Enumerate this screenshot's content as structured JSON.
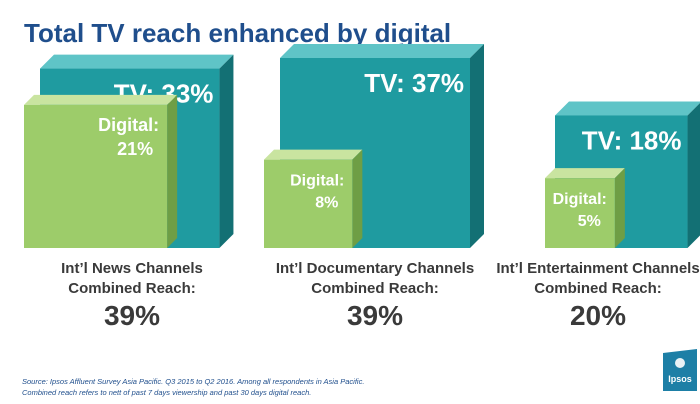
{
  "header": {
    "title": "Total TV reach enhanced by digital"
  },
  "chart_data": {
    "type": "bar",
    "title": "Total TV reach enhanced by digital",
    "categories": [
      "Int’l News Channels",
      "Int’l Documentary Channels",
      "Int’l Entertainment Channels"
    ],
    "category_labels": [
      [
        "Int’l News Channels",
        "Combined Reach:"
      ],
      [
        "Int’l Documentary Channels",
        "Combined Reach:"
      ],
      [
        "Int’l Entertainment Channels",
        "Combined Reach:"
      ]
    ],
    "series": [
      {
        "name": "TV",
        "values": [
          33,
          37,
          18
        ],
        "labels": [
          "TV: 33%",
          "TV: 37%",
          "TV: 18%"
        ]
      },
      {
        "name": "Digital",
        "values": [
          21,
          8,
          5
        ],
        "labels": [
          [
            "Digital:",
            "21%"
          ],
          [
            "Digital:",
            "8%"
          ],
          [
            "Digital:",
            "5%"
          ]
        ]
      }
    ],
    "combined_reach": [
      39,
      39,
      20
    ],
    "combined_reach_labels": [
      "39%",
      "39%",
      "20%"
    ],
    "unit": "%",
    "legend": "none",
    "grid": false
  },
  "colors": {
    "tv_front": "#1f9ba0",
    "tv_top": "#5fc4c7",
    "tv_side": "#137074",
    "digital_front": "#9dcc6a",
    "digital_top": "#c9e4a0",
    "digital_side": "#6e9e45",
    "text_dark": "#3a3a3a",
    "title": "#1f4e8c"
  },
  "footer": {
    "source_line1": "Source: Ipsos Affluent Survey Asia Pacific.  Q3 2015 to Q2 2016.  Among all respondents in Asia Pacific.",
    "source_line2": "Combined reach refers to nett of past 7 days viewership and past 30 days digital reach."
  },
  "logo": {
    "text": "Ipsos",
    "icon": "ipsos-logo-icon"
  }
}
